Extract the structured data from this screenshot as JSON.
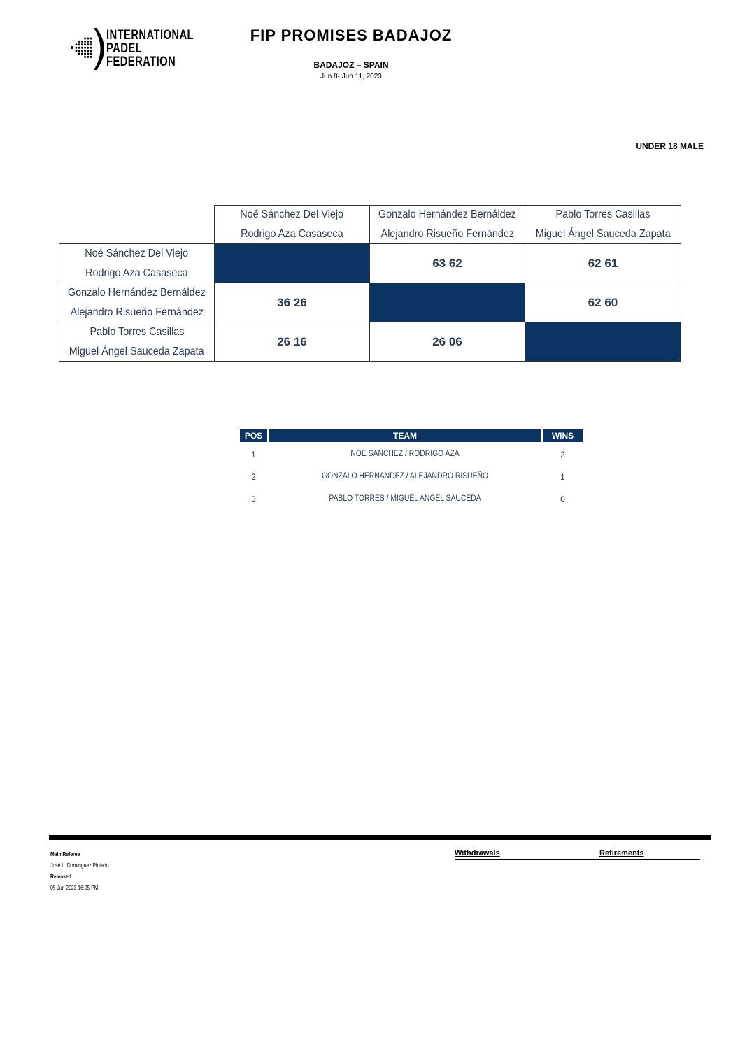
{
  "header": {
    "logo_text": [
      "INTERNATIONAL",
      "PADEL",
      "FEDERATION"
    ],
    "title": "FIP PROMISES BADAJOZ",
    "location": "BADAJOZ – SPAIN",
    "dates": "Jun 8- Jun 11, 2023",
    "category": "UNDER 18 MALE"
  },
  "teams": [
    {
      "p1": "Noé Sánchez Del Viejo",
      "p2": "Rodrigo Aza Casaseca"
    },
    {
      "p1": "Gonzalo Hernández Bernáldez",
      "p2": "Alejandro Risueño Fernández"
    },
    {
      "p1": "Pablo Torres Casillas",
      "p2": "Miguel Ángel Sauceda Zapata"
    }
  ],
  "results": [
    [
      "",
      "63 62",
      "62 61"
    ],
    [
      "36 26",
      "",
      "62 60"
    ],
    [
      "26 16",
      "26 06",
      ""
    ]
  ],
  "colors": {
    "accent": "#0b3463"
  },
  "standings": {
    "headers": {
      "pos": "POS",
      "team": "TEAM",
      "wins": "WINS"
    },
    "rows": [
      {
        "pos": "1",
        "team": "NOE SANCHEZ / RODRIGO AZA",
        "wins": "2"
      },
      {
        "pos": "2",
        "team": "GONZALO HERNANDEZ / ALEJANDRO RISUEÑO",
        "wins": "1"
      },
      {
        "pos": "3",
        "team": "PABLO TORRES / MIGUEL ANGEL SAUCEDA",
        "wins": "0"
      }
    ]
  },
  "footer": {
    "referee_label": "Main Referee",
    "referee": "José L. Domínguez Pintado",
    "released_label": "Released",
    "released": "05 Jun 2023 16:05 PM",
    "withdrawals": "Withdrawals",
    "retirements": "Retirements"
  }
}
